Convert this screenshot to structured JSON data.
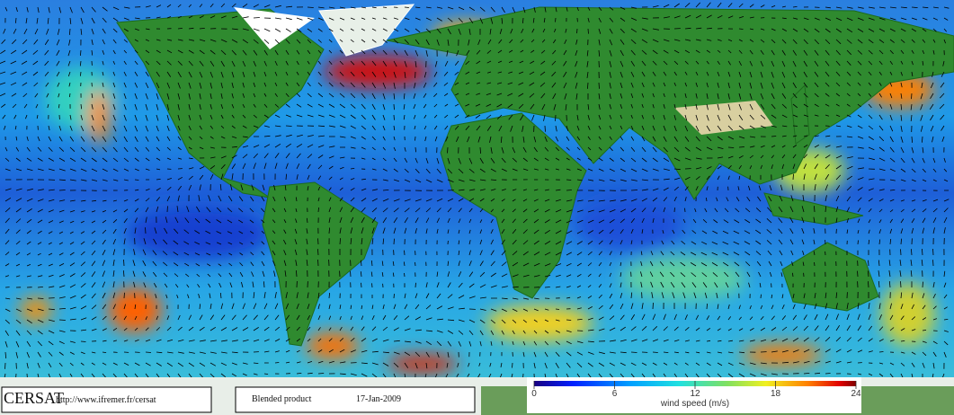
{
  "logo": "CERSAT",
  "url": "http://www.ifremer.fr/cersat",
  "product": "Blended product",
  "date": "17-Jan-2009",
  "colorbar": {
    "label": "wind speed (m/s)",
    "range": [
      0,
      24
    ],
    "ticks": [
      0,
      6,
      12,
      18,
      24
    ]
  }
}
